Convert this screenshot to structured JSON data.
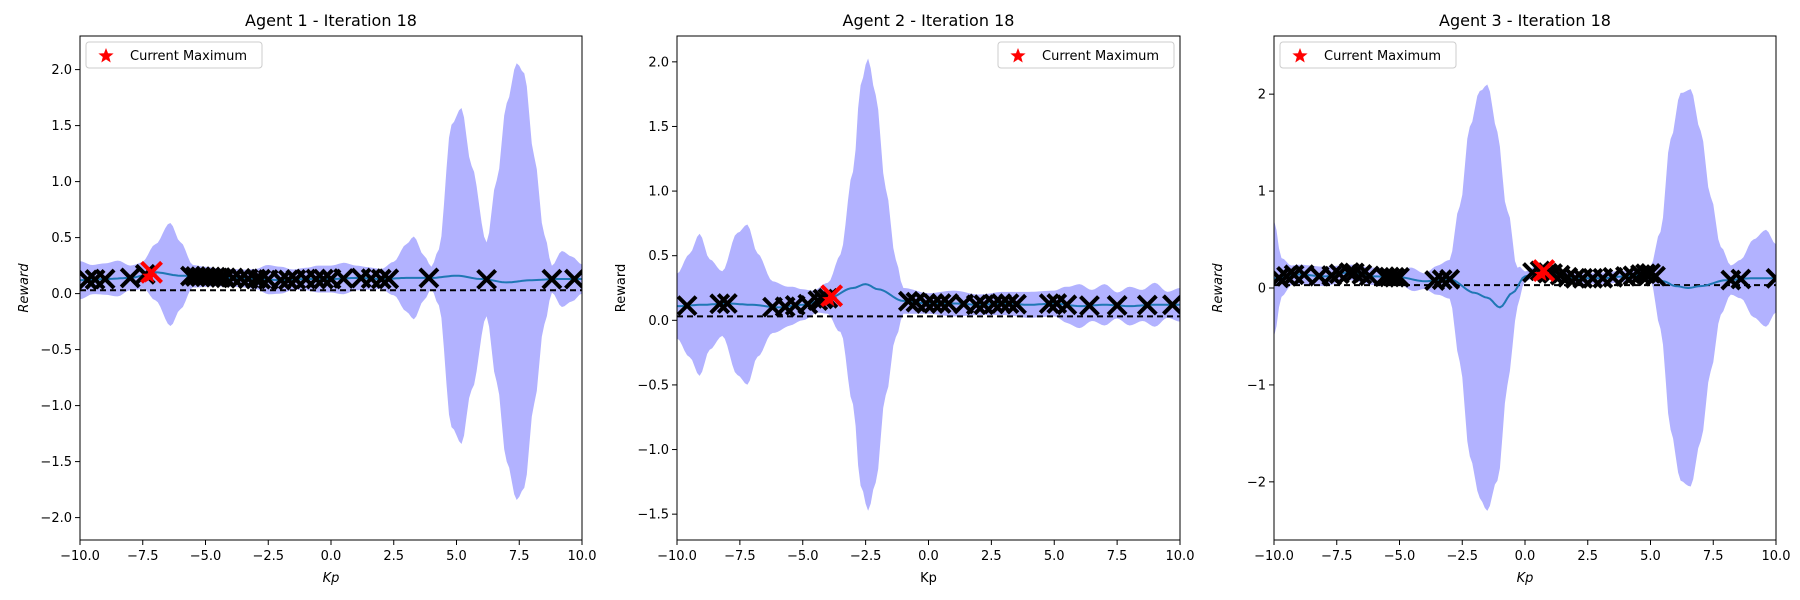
{
  "chart_data": [
    {
      "type": "line",
      "title": "Agent 1 - Iteration 18",
      "xlabel": "Kp",
      "xlabel_italic": true,
      "ylabel": "Reward",
      "ylabel_italic": true,
      "xlim": [
        -10,
        10
      ],
      "ylim": [
        -2.2,
        2.3
      ],
      "xticks": [
        -10,
        -7.5,
        -5,
        -2.5,
        0,
        2.5,
        5,
        7.5,
        10
      ],
      "xtick_labels": [
        "−10.0",
        "−7.5",
        "−5.0",
        "−2.5",
        "0.0",
        "2.5",
        "5.0",
        "7.5",
        "10.0"
      ],
      "yticks": [
        -2,
        -1.5,
        -1,
        -0.5,
        0,
        0.5,
        1,
        1.5,
        2
      ],
      "ytick_labels": [
        "−2.0",
        "−1.5",
        "−1.0",
        "−0.5",
        "0.0",
        "0.5",
        "1.0",
        "1.5",
        "2.0"
      ],
      "legend": {
        "label": "Current Maximum",
        "position": "upper left"
      },
      "baseline": 0.03,
      "mean_curve": [
        [
          -10,
          0.12
        ],
        [
          -9,
          0.13
        ],
        [
          -8,
          0.14
        ],
        [
          -7,
          0.19
        ],
        [
          -6,
          0.16
        ],
        [
          -5,
          0.15
        ],
        [
          -4,
          0.14
        ],
        [
          -3,
          0.13
        ],
        [
          -2,
          0.12
        ],
        [
          -1,
          0.13
        ],
        [
          0,
          0.13
        ],
        [
          1,
          0.14
        ],
        [
          2,
          0.13
        ],
        [
          3,
          0.14
        ],
        [
          4,
          0.14
        ],
        [
          5,
          0.16
        ],
        [
          6,
          0.13
        ],
        [
          7,
          0.1
        ],
        [
          8,
          0.12
        ],
        [
          9,
          0.13
        ],
        [
          10,
          0.13
        ]
      ],
      "band_halfwidth": [
        [
          -10,
          0.17
        ],
        [
          -9.5,
          0.13
        ],
        [
          -9,
          0.14
        ],
        [
          -8.5,
          0.16
        ],
        [
          -8,
          0.11
        ],
        [
          -7.5,
          0.12
        ],
        [
          -7,
          0.25
        ],
        [
          -6.4,
          0.46
        ],
        [
          -6,
          0.3
        ],
        [
          -5.5,
          0.1
        ],
        [
          -5,
          0.09
        ],
        [
          -4.5,
          0.08
        ],
        [
          -4,
          0.08
        ],
        [
          -3.5,
          0.08
        ],
        [
          -3,
          0.09
        ],
        [
          -2.5,
          0.13
        ],
        [
          -2,
          0.12
        ],
        [
          -1.5,
          0.09
        ],
        [
          -1,
          0.1
        ],
        [
          -0.5,
          0.12
        ],
        [
          0,
          0.12
        ],
        [
          0.5,
          0.14
        ],
        [
          1,
          0.11
        ],
        [
          1.5,
          0.1
        ],
        [
          2,
          0.09
        ],
        [
          2.5,
          0.15
        ],
        [
          3,
          0.3
        ],
        [
          3.3,
          0.37
        ],
        [
          3.7,
          0.2
        ],
        [
          4,
          0.1
        ],
        [
          4.3,
          0.25
        ],
        [
          4.8,
          1.35
        ],
        [
          5.2,
          1.5
        ],
        [
          5.6,
          1.0
        ],
        [
          6.2,
          0.33
        ],
        [
          6.6,
          0.9
        ],
        [
          7.0,
          1.6
        ],
        [
          7.4,
          1.95
        ],
        [
          7.7,
          1.85
        ],
        [
          8.1,
          1.1
        ],
        [
          8.5,
          0.4
        ],
        [
          8.8,
          0.12
        ],
        [
          9.2,
          0.25
        ],
        [
          9.6,
          0.2
        ],
        [
          10,
          0.13
        ]
      ],
      "samples": [
        -9.7,
        -9.4,
        -9.0,
        -8.0,
        -7.4,
        -5.6,
        -5.4,
        -5.2,
        -5.0,
        -4.8,
        -4.6,
        -4.4,
        -4.2,
        -3.9,
        -3.6,
        -3.3,
        -3.0,
        -2.8,
        -2.5,
        -2.0,
        -1.7,
        -1.4,
        -1.0,
        -0.6,
        -0.3,
        0.0,
        0.5,
        1.2,
        1.6,
        2.0,
        2.3,
        3.9,
        6.2,
        8.8,
        9.7
      ],
      "current_maximum": [
        -7.15,
        0.19
      ]
    },
    {
      "type": "line",
      "title": "Agent 2 - Iteration 18",
      "xlabel": "Kp",
      "xlabel_italic": false,
      "ylabel": "Reward",
      "ylabel_italic": false,
      "xlim": [
        -10,
        10
      ],
      "ylim": [
        -1.7,
        2.2
      ],
      "xticks": [
        -10,
        -7.5,
        -5,
        -2.5,
        0,
        2.5,
        5,
        7.5,
        10
      ],
      "xtick_labels": [
        "−10.0",
        "−7.5",
        "−5.0",
        "−2.5",
        "0.0",
        "2.5",
        "5.0",
        "7.5",
        "10.0"
      ],
      "yticks": [
        -1.5,
        -1,
        -0.5,
        0,
        0.5,
        1,
        1.5,
        2
      ],
      "ytick_labels": [
        "−1.5",
        "−1.0",
        "−0.5",
        "0.0",
        "0.5",
        "1.0",
        "1.5",
        "2.0"
      ],
      "legend": {
        "label": "Current Maximum",
        "position": "upper right"
      },
      "baseline": 0.03,
      "mean_curve": [
        [
          -10,
          0.11
        ],
        [
          -9,
          0.12
        ],
        [
          -8,
          0.13
        ],
        [
          -7,
          0.12
        ],
        [
          -6,
          0.1
        ],
        [
          -5,
          0.12
        ],
        [
          -4,
          0.17
        ],
        [
          -3,
          0.25
        ],
        [
          -2.5,
          0.28
        ],
        [
          -2,
          0.24
        ],
        [
          -1,
          0.15
        ],
        [
          0,
          0.13
        ],
        [
          1,
          0.13
        ],
        [
          2,
          0.12
        ],
        [
          3,
          0.13
        ],
        [
          4,
          0.12
        ],
        [
          5,
          0.13
        ],
        [
          6,
          0.11
        ],
        [
          7,
          0.12
        ],
        [
          8,
          0.11
        ],
        [
          9,
          0.12
        ],
        [
          10,
          0.12
        ]
      ],
      "band_halfwidth": [
        [
          -10,
          0.25
        ],
        [
          -9.5,
          0.4
        ],
        [
          -9.1,
          0.55
        ],
        [
          -8.7,
          0.35
        ],
        [
          -8.2,
          0.25
        ],
        [
          -7.6,
          0.55
        ],
        [
          -7.2,
          0.62
        ],
        [
          -6.8,
          0.4
        ],
        [
          -6.2,
          0.2
        ],
        [
          -5.5,
          0.15
        ],
        [
          -5,
          0.12
        ],
        [
          -4.5,
          0.09
        ],
        [
          -4,
          0.12
        ],
        [
          -3.5,
          0.3
        ],
        [
          -3,
          0.9
        ],
        [
          -2.7,
          1.55
        ],
        [
          -2.4,
          1.75
        ],
        [
          -2.1,
          1.5
        ],
        [
          -1.7,
          0.8
        ],
        [
          -1.3,
          0.3
        ],
        [
          -1,
          0.1
        ],
        [
          0,
          0.08
        ],
        [
          1,
          0.1
        ],
        [
          2,
          0.08
        ],
        [
          3,
          0.09
        ],
        [
          4,
          0.1
        ],
        [
          5,
          0.1
        ],
        [
          5.5,
          0.14
        ],
        [
          6,
          0.17
        ],
        [
          6.5,
          0.12
        ],
        [
          7,
          0.16
        ],
        [
          7.5,
          0.1
        ],
        [
          8,
          0.15
        ],
        [
          8.5,
          0.12
        ],
        [
          9,
          0.17
        ],
        [
          9.5,
          0.1
        ],
        [
          10,
          0.13
        ]
      ],
      "samples": [
        -9.6,
        -8.3,
        -8.0,
        -6.2,
        -5.7,
        -5.3,
        -4.8,
        -4.4,
        -4.2,
        -4.0,
        -0.8,
        -0.5,
        -0.1,
        0.2,
        0.5,
        0.8,
        1.4,
        1.9,
        2.2,
        2.6,
        2.9,
        3.2,
        3.5,
        4.8,
        5.1,
        5.5,
        6.4,
        7.5,
        8.7,
        9.7
      ],
      "current_maximum": [
        -3.85,
        0.19
      ]
    },
    {
      "type": "line",
      "title": "Agent 3 - Iteration 18",
      "xlabel": "Kp",
      "xlabel_italic": true,
      "ylabel": "Reward",
      "ylabel_italic": true,
      "xlim": [
        -10,
        10
      ],
      "ylim": [
        -2.6,
        2.6
      ],
      "xticks": [
        -10,
        -7.5,
        -5,
        -2.5,
        0,
        2.5,
        5,
        7.5,
        10
      ],
      "xtick_labels": [
        "−10.0",
        "−7.5",
        "−5.0",
        "−2.5",
        "0.0",
        "2.5",
        "5.0",
        "7.5",
        "10.0"
      ],
      "yticks": [
        -2,
        -1,
        0,
        1,
        2
      ],
      "ytick_labels": [
        "−2",
        "−1",
        "0",
        "1",
        "2"
      ],
      "legend": {
        "label": "Current Maximum",
        "position": "upper left"
      },
      "baseline": 0.03,
      "mean_curve": [
        [
          -10,
          0.1
        ],
        [
          -9,
          0.14
        ],
        [
          -8,
          0.12
        ],
        [
          -7,
          0.16
        ],
        [
          -6,
          0.12
        ],
        [
          -5,
          0.11
        ],
        [
          -4,
          0.07
        ],
        [
          -3,
          0.09
        ],
        [
          -2,
          -0.05
        ],
        [
          -1.5,
          -0.1
        ],
        [
          -1,
          -0.2
        ],
        [
          -0.5,
          -0.05
        ],
        [
          0,
          0.12
        ],
        [
          0.5,
          0.18
        ],
        [
          1,
          0.15
        ],
        [
          2,
          0.1
        ],
        [
          3,
          0.1
        ],
        [
          4,
          0.12
        ],
        [
          5,
          0.15
        ],
        [
          5.5,
          0.07
        ],
        [
          6,
          0.02
        ],
        [
          6.5,
          0.0
        ],
        [
          7,
          0.02
        ],
        [
          8,
          0.08
        ],
        [
          9,
          0.1
        ],
        [
          10,
          0.1
        ]
      ],
      "band_halfwidth": [
        [
          -10,
          0.6
        ],
        [
          -9.7,
          0.2
        ],
        [
          -9.3,
          0.1
        ],
        [
          -8.5,
          0.1
        ],
        [
          -8,
          0.1
        ],
        [
          -7,
          0.08
        ],
        [
          -6,
          0.09
        ],
        [
          -5,
          0.07
        ],
        [
          -4.5,
          0.12
        ],
        [
          -4,
          0.08
        ],
        [
          -3.5,
          0.15
        ],
        [
          -3,
          0.2
        ],
        [
          -2.6,
          0.8
        ],
        [
          -2.2,
          1.7
        ],
        [
          -1.8,
          2.1
        ],
        [
          -1.5,
          2.2
        ],
        [
          -1.1,
          1.8
        ],
        [
          -0.7,
          0.9
        ],
        [
          -0.3,
          0.2
        ],
        [
          0,
          0.05
        ],
        [
          1,
          0.06
        ],
        [
          2,
          0.05
        ],
        [
          3,
          0.06
        ],
        [
          4,
          0.06
        ],
        [
          5,
          0.07
        ],
        [
          5.4,
          0.5
        ],
        [
          5.8,
          1.5
        ],
        [
          6.2,
          2.0
        ],
        [
          6.6,
          2.05
        ],
        [
          7.0,
          1.6
        ],
        [
          7.4,
          0.9
        ],
        [
          7.8,
          0.35
        ],
        [
          8.2,
          0.15
        ],
        [
          8.6,
          0.2
        ],
        [
          9.1,
          0.4
        ],
        [
          9.6,
          0.5
        ],
        [
          10,
          0.35
        ]
      ],
      "samples": [
        -9.8,
        -9.5,
        -9.2,
        -8.8,
        -8.2,
        -7.7,
        -7.4,
        -7.0,
        -6.8,
        -6.5,
        -6.2,
        -5.6,
        -5.4,
        -5.2,
        -5.0,
        -3.6,
        -3.3,
        -3.0,
        0.3,
        0.6,
        0.9,
        1.1,
        1.4,
        1.7,
        2.0,
        2.3,
        2.7,
        3.1,
        3.5,
        4.0,
        4.3,
        4.6,
        4.8,
        5.0,
        5.2,
        8.2,
        8.6,
        10.0
      ],
      "current_maximum": [
        0.75,
        0.18
      ]
    }
  ],
  "colors": {
    "band": "#b2b2ff",
    "mean_line": "#1f77b4",
    "samples": "#000000",
    "maximum": "#ff0000",
    "baseline": "#000000"
  }
}
